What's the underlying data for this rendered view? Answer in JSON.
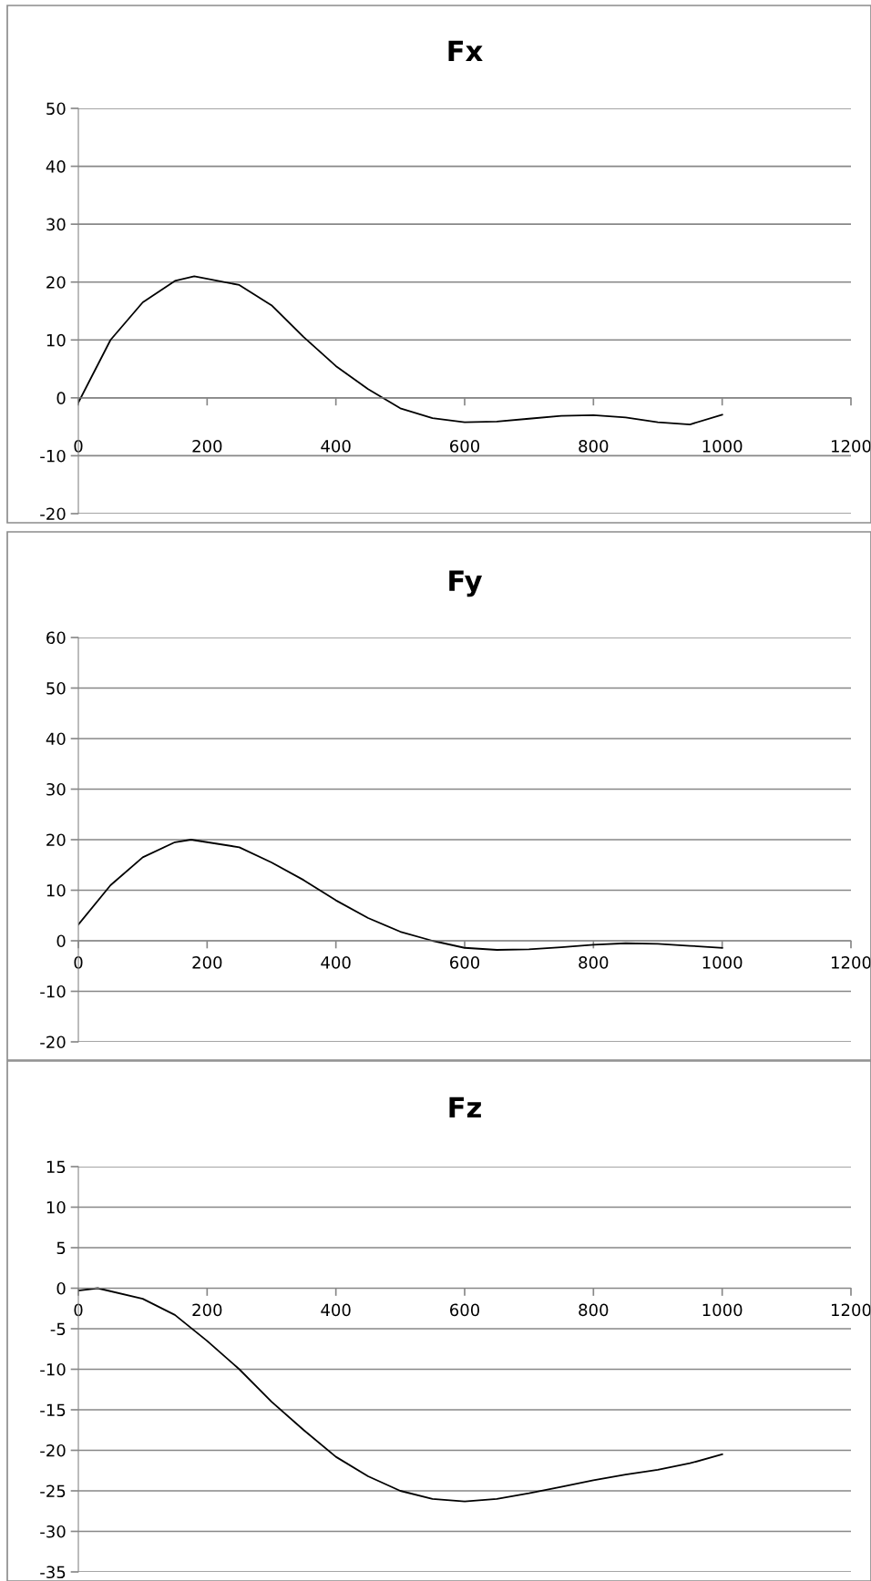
{
  "chart_data": [
    {
      "type": "line",
      "title": "Fx",
      "x": [
        0,
        50,
        100,
        150,
        180,
        250,
        300,
        350,
        400,
        450,
        500,
        550,
        600,
        650,
        700,
        750,
        800,
        850,
        900,
        950,
        1000
      ],
      "series": [
        {
          "color": "#000000",
          "values": [
            -0.8,
            10,
            16.5,
            20.2,
            21,
            19.5,
            16,
            10.5,
            5.5,
            1.5,
            -1.8,
            -3.5,
            -4.2,
            -4.1,
            -3.6,
            -3.1,
            -3.0,
            -3.4,
            -4.2,
            -4.6,
            -2.9
          ]
        }
      ],
      "xlim": [
        0,
        1200
      ],
      "xticks": [
        0,
        200,
        400,
        600,
        800,
        1000,
        1200
      ],
      "ylim": [
        -20,
        50
      ],
      "yticks": [
        -20,
        -10,
        0,
        10,
        20,
        30,
        40,
        50
      ],
      "grid": "y",
      "marker": "none",
      "line_style": "solid"
    },
    {
      "type": "line",
      "title": "Fy",
      "x": [
        0,
        50,
        100,
        150,
        175,
        250,
        300,
        350,
        400,
        450,
        500,
        550,
        600,
        650,
        700,
        750,
        800,
        850,
        900,
        950,
        1000
      ],
      "series": [
        {
          "color": "#000000",
          "values": [
            3.2,
            11,
            16.5,
            19.5,
            20,
            18.5,
            15.5,
            12,
            8,
            4.5,
            1.8,
            0,
            -1.4,
            -1.8,
            -1.7,
            -1.3,
            -0.8,
            -0.5,
            -0.6,
            -1.0,
            -1.4
          ]
        }
      ],
      "xlim": [
        0,
        1200
      ],
      "xticks": [
        0,
        200,
        400,
        600,
        800,
        1000,
        1200
      ],
      "ylim": [
        -20,
        60
      ],
      "yticks": [
        -20,
        -10,
        0,
        10,
        20,
        30,
        40,
        50,
        60
      ],
      "grid": "y",
      "marker": "none",
      "line_style": "solid"
    },
    {
      "type": "line",
      "title": "Fz",
      "x": [
        0,
        30,
        100,
        150,
        200,
        250,
        300,
        350,
        400,
        450,
        500,
        550,
        600,
        650,
        700,
        750,
        800,
        850,
        900,
        950,
        1000
      ],
      "series": [
        {
          "color": "#000000",
          "values": [
            -0.3,
            0,
            -1.3,
            -3.3,
            -6.5,
            -10,
            -14,
            -17.5,
            -20.8,
            -23.2,
            -25,
            -26,
            -26.3,
            -26,
            -25.3,
            -24.5,
            -23.7,
            -23,
            -22.4,
            -21.6,
            -20.5
          ]
        }
      ],
      "xlim": [
        0,
        1200
      ],
      "xticks": [
        0,
        200,
        400,
        600,
        800,
        1000,
        1200
      ],
      "ylim": [
        -35,
        15
      ],
      "yticks": [
        -35,
        -30,
        -25,
        -20,
        -15,
        -10,
        -5,
        0,
        5,
        10,
        15
      ],
      "grid": "y",
      "marker": "none",
      "line_style": "solid"
    }
  ]
}
